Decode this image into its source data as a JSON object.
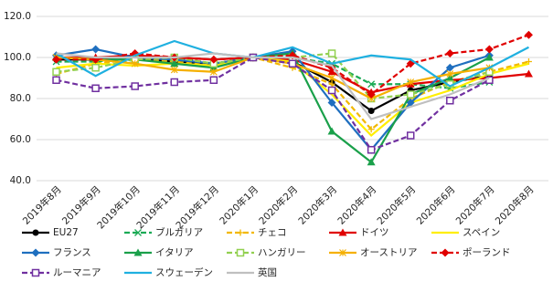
{
  "chart_data": {
    "type": "line",
    "categories": [
      "2019年8月",
      "2019年9月",
      "2019年10月",
      "2019年11月",
      "2019年12月",
      "2020年1月",
      "2020年2月",
      "2020年3月",
      "2020年4月",
      "2020年5月",
      "2020年6月",
      "2020年7月",
      "2020年8月"
    ],
    "ylim": [
      40,
      120
    ],
    "yticks": [
      {
        "value": 40,
        "label": "40.0"
      },
      {
        "value": 60,
        "label": "60.0"
      },
      {
        "value": 80,
        "label": "80.0"
      },
      {
        "value": 100,
        "label": "100.0"
      },
      {
        "value": 120,
        "label": "120.0"
      }
    ],
    "grid": true,
    "series": [
      {
        "name": "EU27",
        "color": "#000000",
        "marker": "circle",
        "dashed": false,
        "values": [
          99,
          99,
          99,
          98,
          97,
          100,
          98,
          88,
          74,
          84,
          88,
          91,
          null
        ]
      },
      {
        "name": "ブルガリア",
        "color": "#1aaa55",
        "marker": "x",
        "dashed": true,
        "values": [
          98,
          98,
          100,
          100,
          97,
          100,
          100,
          97,
          87,
          87,
          85,
          88,
          null
        ]
      },
      {
        "name": "チェコ",
        "color": "#f2b800",
        "marker": "plus",
        "dashed": true,
        "values": [
          92,
          97,
          99,
          98,
          96,
          100,
          95,
          87,
          65,
          80,
          88,
          93,
          98
        ]
      },
      {
        "name": "ドイツ",
        "color": "#e00000",
        "marker": "triangle",
        "dashed": false,
        "values": [
          100,
          100,
          101,
          100,
          99,
          100,
          99,
          93,
          83,
          87,
          89,
          90,
          92
        ]
      },
      {
        "name": "スペイン",
        "color": "#ffee00",
        "marker": "none",
        "dashed": false,
        "values": [
          95,
          97,
          96,
          97,
          96,
          100,
          98,
          82,
          62,
          78,
          84,
          92,
          97
        ]
      },
      {
        "name": "フランス",
        "color": "#1f6fbf",
        "marker": "diamond",
        "dashed": false,
        "values": [
          101,
          104,
          100,
          99,
          97,
          100,
          103,
          78,
          55,
          78,
          95,
          101,
          null
        ]
      },
      {
        "name": "イタリア",
        "color": "#1aa04a",
        "marker": "triangle",
        "dashed": false,
        "values": [
          100,
          99,
          99,
          97,
          95,
          100,
          102,
          64,
          49,
          82,
          90,
          100,
          null
        ]
      },
      {
        "name": "ハンガリー",
        "color": "#92d050",
        "marker": "square",
        "dashed": true,
        "values": [
          93,
          95,
          99,
          100,
          97,
          100,
          100,
          102,
          80,
          82,
          87,
          93,
          null
        ]
      },
      {
        "name": "オーストリア",
        "color": "#f5b000",
        "marker": "star",
        "dashed": false,
        "values": [
          100,
          99,
          97,
          94,
          93,
          100,
          97,
          90,
          80,
          88,
          92,
          95,
          null
        ]
      },
      {
        "name": "ポーランド",
        "color": "#e00000",
        "marker": "diamond",
        "dashed": true,
        "values": [
          99,
          99,
          102,
          100,
          99,
          100,
          101,
          95,
          82,
          97,
          102,
          104,
          111
        ]
      },
      {
        "name": "ルーマニア",
        "color": "#7030a0",
        "marker": "square",
        "dashed": true,
        "values": [
          89,
          85,
          86,
          88,
          89,
          100,
          97,
          84,
          55,
          62,
          79,
          89,
          null
        ]
      },
      {
        "name": "スウェーデン",
        "color": "#1fb0e0",
        "marker": "none",
        "dashed": false,
        "values": [
          102,
          91,
          101,
          108,
          102,
          100,
          105,
          97,
          101,
          99,
          86,
          95,
          105
        ]
      },
      {
        "name": "英国",
        "color": "#bfbfbf",
        "marker": "none",
        "dashed": false,
        "values": [
          102,
          100,
          100,
          100,
          102,
          100,
          100,
          96,
          70,
          76,
          82,
          90,
          null
        ]
      }
    ]
  }
}
